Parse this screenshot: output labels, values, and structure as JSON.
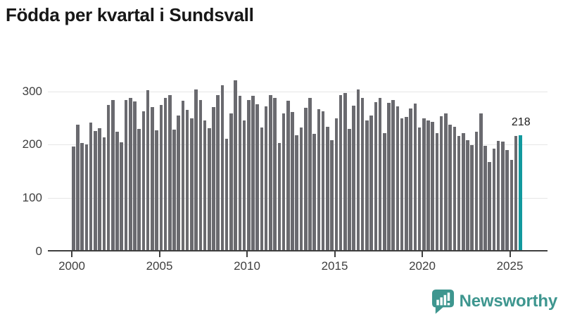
{
  "title": "Födda per kvartal i Sundsvall",
  "chart_data": {
    "type": "bar",
    "title": "Födda per kvartal i Sundsvall",
    "x_start": "2000 Q1",
    "x_end": "2025 Q3",
    "x_tick_labels": [
      "2000",
      "2005",
      "2010",
      "2015",
      "2020",
      "2025"
    ],
    "y_ticks": [
      0,
      100,
      200,
      300
    ],
    "ylim": [
      0,
      330
    ],
    "grid": "horizontal",
    "legend": "none",
    "bar_color": "#6a6a6f",
    "axis_color": "#3f3f3f",
    "grid_color": "#e6e6e6",
    "values": [
      196,
      237,
      203,
      200,
      242,
      225,
      231,
      214,
      275,
      284,
      224,
      205,
      283,
      288,
      281,
      230,
      262,
      302,
      271,
      227,
      274,
      288,
      293,
      228,
      255,
      282,
      265,
      249,
      303,
      283,
      245,
      231,
      271,
      293,
      311,
      211,
      258,
      320,
      291,
      246,
      283,
      291,
      276,
      232,
      272,
      293,
      288,
      203,
      259,
      282,
      261,
      218,
      232,
      269,
      287,
      220,
      266,
      263,
      234,
      209,
      249,
      293,
      297,
      229,
      273,
      304,
      288,
      246,
      255,
      280,
      287,
      221,
      279,
      283,
      272,
      250,
      252,
      268,
      277,
      232,
      250,
      245,
      243,
      221,
      253,
      259,
      237,
      234,
      216,
      222,
      208,
      199,
      224,
      258,
      198,
      168,
      192,
      207,
      206,
      190,
      171,
      217,
      218
    ],
    "highlight": {
      "index": 102,
      "period": "2025 Q3",
      "value": 218,
      "label": "218",
      "color": "#12999e"
    }
  },
  "branding": {
    "name": "Newsworthy",
    "color": "#3e968f",
    "icon": "newsworthy-speech-bubble-bar-chart-icon"
  }
}
